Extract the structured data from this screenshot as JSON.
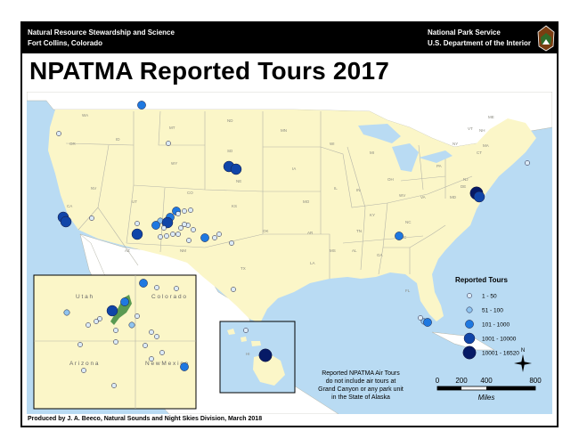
{
  "header": {
    "left_line1": "Natural Resource Stewardship and Science",
    "left_line2": "Fort Collins, Colorado",
    "right_line1": "National Park Service",
    "right_line2": "U.S. Department of the Interior"
  },
  "title": "NPATMA Reported Tours 2017",
  "credit": "Produced by J. A. Beeco, Natural Sounds and Night Skies Division,  March 2018",
  "legend": {
    "title": "Reported Tours",
    "classes": [
      {
        "label": "1 - 50",
        "color": "#dcebf7"
      },
      {
        "label": "51 - 100",
        "color": "#90c4ef"
      },
      {
        "label": "101 - 1000",
        "color": "#1f78e0"
      },
      {
        "label": "1001 - 10000",
        "color": "#1045a8"
      },
      {
        "label": "10001 - 16520",
        "color": "#061a66"
      }
    ]
  },
  "note": {
    "line1": "Reported NPATMA Air Tours",
    "line2": "do not include air tours at",
    "line3": "Grand Canyon or any park unit",
    "line4": "in the State of Alaska"
  },
  "scale": {
    "ticks": [
      "0",
      "200",
      "400",
      "800"
    ],
    "unit": "Miles"
  },
  "north_label": "N",
  "inset_labels": {
    "utah": "U t a h",
    "colorado": "C o l o r a d o",
    "arizona": "A r i z o n a",
    "new_mexico": "N e w   M e x i c o"
  },
  "state_labels": [
    "WA",
    "OR",
    "ID",
    "MT",
    "WY",
    "NV",
    "CA",
    "UT",
    "CO",
    "AZ",
    "NM",
    "ND",
    "SD",
    "NE",
    "KS",
    "OK",
    "TX",
    "MN",
    "IA",
    "MO",
    "AR",
    "LA",
    "WI",
    "IL",
    "MI",
    "IN",
    "OH",
    "KY",
    "TN",
    "MS",
    "AL",
    "GA",
    "FL",
    "SC",
    "NC",
    "VA",
    "WV",
    "PA",
    "NY",
    "VT",
    "NH",
    "ME",
    "MA",
    "CT",
    "NJ",
    "DE",
    "MD",
    "HI"
  ],
  "colors": {
    "water": "#b9dbf3",
    "land": "#fbf6c8",
    "other_land": "#ffffff",
    "boundary": "#b5b5a8"
  }
}
